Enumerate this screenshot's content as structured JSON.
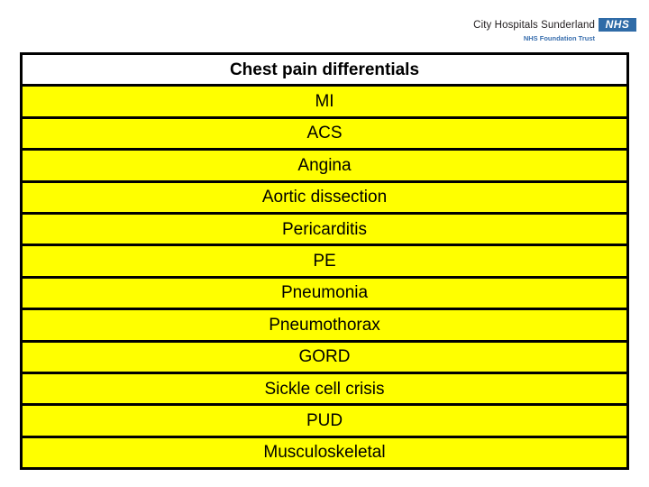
{
  "logo": {
    "org": "City Hospitals Sunderland",
    "nhs": "NHS",
    "sub": "NHS Foundation Trust",
    "nhs_blue": "#2f6ba7"
  },
  "table": {
    "title": "Chest pain differentials",
    "rows": [
      "MI",
      "ACS",
      "Angina",
      "Aortic dissection",
      "Pericarditis",
      "PE",
      "Pneumonia",
      "Pneumothorax",
      "GORD",
      "Sickle cell crisis",
      "PUD",
      "Musculoskeletal"
    ],
    "colors": {
      "header_bg": "#ffffff",
      "row_bg": "#ffff00",
      "border": "#000000",
      "text": "#000000"
    }
  }
}
